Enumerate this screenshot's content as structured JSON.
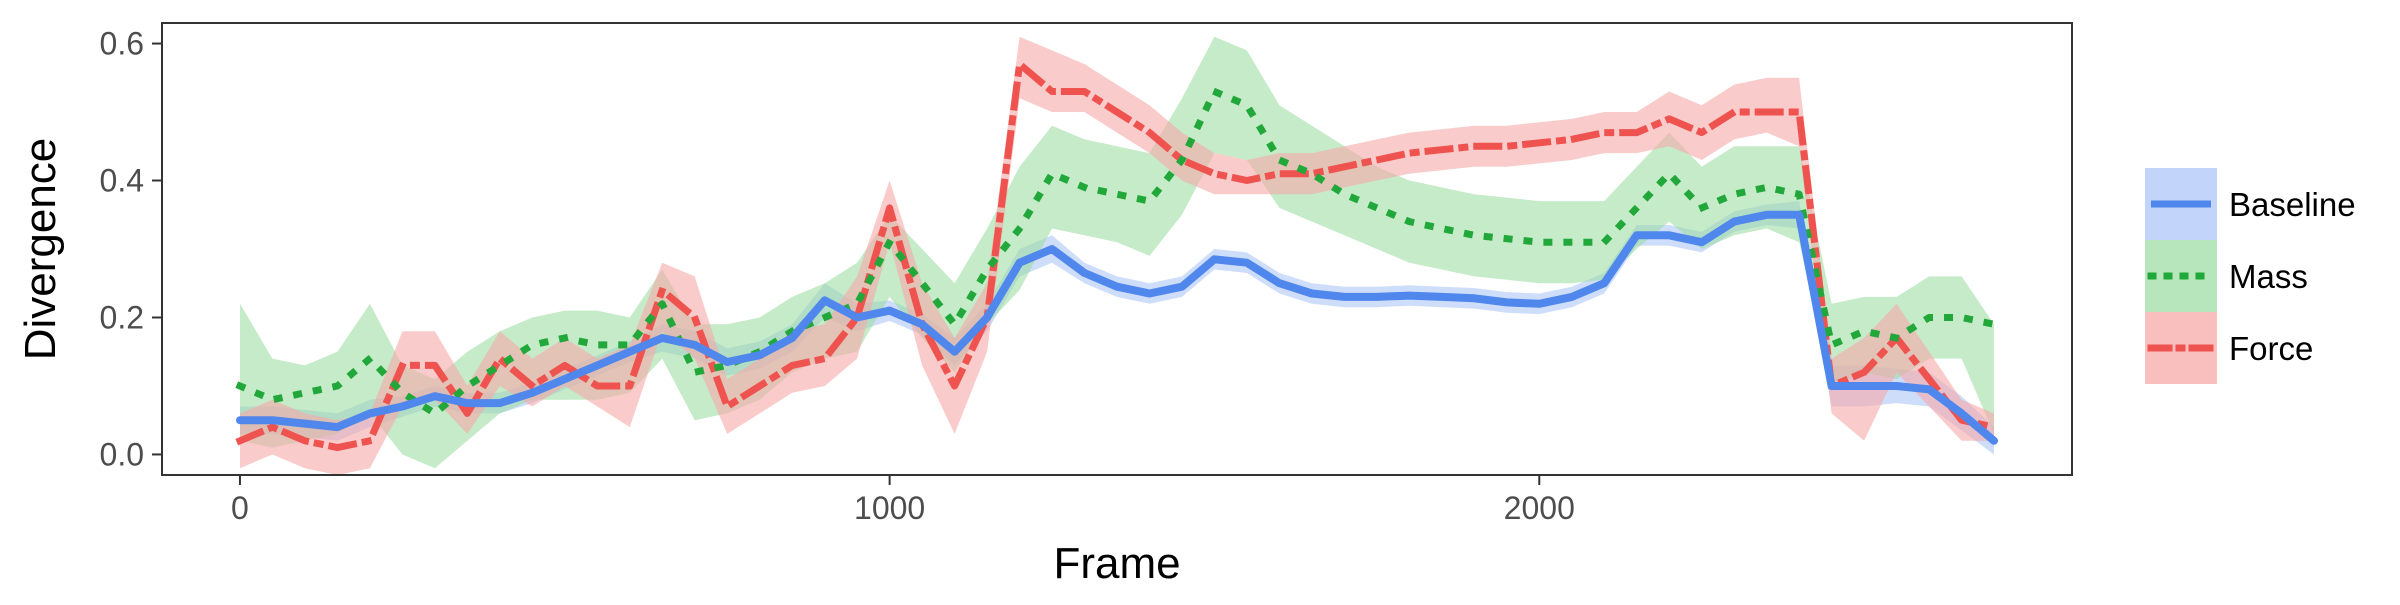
{
  "chart_data": {
    "type": "line",
    "xlabel": "Frame",
    "ylabel": "Divergence",
    "xlim": [
      -120,
      2820
    ],
    "ylim": [
      -0.03,
      0.63
    ],
    "x_ticks": [
      0,
      1000,
      2000
    ],
    "x_tick_labels": [
      "0",
      "1000",
      "2000"
    ],
    "y_ticks": [
      0.0,
      0.2,
      0.4,
      0.6
    ],
    "y_tick_labels": [
      "0.0",
      "0.2",
      "0.4",
      "0.6"
    ],
    "grid": false,
    "legend_position": "right",
    "x": [
      0,
      50,
      100,
      150,
      200,
      250,
      300,
      350,
      400,
      450,
      500,
      550,
      600,
      650,
      700,
      750,
      800,
      850,
      900,
      950,
      1000,
      1050,
      1100,
      1150,
      1200,
      1250,
      1300,
      1350,
      1400,
      1450,
      1500,
      1550,
      1600,
      1650,
      1700,
      1750,
      1800,
      1850,
      1900,
      1950,
      2000,
      2050,
      2100,
      2150,
      2200,
      2250,
      2300,
      2350,
      2400,
      2450,
      2500,
      2550,
      2600,
      2650,
      2700
    ],
    "series": [
      {
        "name": "Baseline",
        "color": "#4f87ec",
        "fill": "#aec6f7",
        "dash": "solid",
        "values": [
          0.05,
          0.05,
          0.045,
          0.04,
          0.06,
          0.07,
          0.085,
          0.075,
          0.075,
          0.09,
          0.11,
          0.13,
          0.15,
          0.17,
          0.16,
          0.135,
          0.145,
          0.17,
          0.225,
          0.2,
          0.21,
          0.19,
          0.15,
          0.2,
          0.28,
          0.3,
          0.265,
          0.245,
          0.235,
          0.245,
          0.285,
          0.28,
          0.25,
          0.235,
          0.23,
          0.23,
          0.232,
          0.23,
          0.228,
          0.222,
          0.22,
          0.23,
          0.25,
          0.32,
          0.32,
          0.31,
          0.34,
          0.35,
          0.35,
          0.1,
          0.1,
          0.1,
          0.095,
          0.06,
          0.02
        ],
        "lower": [
          0.03,
          0.03,
          0.025,
          0.02,
          0.04,
          0.055,
          0.07,
          0.06,
          0.06,
          0.075,
          0.095,
          0.115,
          0.135,
          0.15,
          0.14,
          0.115,
          0.125,
          0.15,
          0.2,
          0.18,
          0.195,
          0.175,
          0.13,
          0.18,
          0.26,
          0.28,
          0.25,
          0.23,
          0.22,
          0.23,
          0.27,
          0.265,
          0.235,
          0.22,
          0.215,
          0.215,
          0.217,
          0.215,
          0.213,
          0.207,
          0.205,
          0.215,
          0.235,
          0.305,
          0.305,
          0.295,
          0.325,
          0.335,
          0.33,
          0.07,
          0.07,
          0.075,
          0.07,
          0.035,
          0.0
        ],
        "upper": [
          0.07,
          0.07,
          0.065,
          0.06,
          0.08,
          0.085,
          0.1,
          0.09,
          0.09,
          0.105,
          0.125,
          0.145,
          0.165,
          0.19,
          0.18,
          0.155,
          0.165,
          0.19,
          0.25,
          0.22,
          0.225,
          0.205,
          0.17,
          0.22,
          0.3,
          0.32,
          0.28,
          0.26,
          0.25,
          0.26,
          0.3,
          0.295,
          0.265,
          0.25,
          0.245,
          0.245,
          0.247,
          0.245,
          0.243,
          0.237,
          0.235,
          0.245,
          0.265,
          0.335,
          0.335,
          0.325,
          0.355,
          0.365,
          0.37,
          0.13,
          0.13,
          0.125,
          0.12,
          0.085,
          0.04
        ]
      },
      {
        "name": "Mass",
        "color": "#22a83a",
        "fill": "#9fdea5",
        "dash": "dotted",
        "values": [
          0.1,
          0.08,
          0.09,
          0.1,
          0.14,
          0.09,
          0.06,
          0.1,
          0.13,
          0.16,
          0.17,
          0.16,
          0.16,
          0.22,
          0.12,
          0.13,
          0.15,
          0.18,
          0.2,
          0.22,
          0.31,
          0.25,
          0.19,
          0.27,
          0.33,
          0.41,
          0.39,
          0.38,
          0.37,
          0.43,
          0.53,
          0.51,
          0.43,
          0.41,
          0.38,
          0.36,
          0.34,
          0.33,
          0.32,
          0.315,
          0.31,
          0.31,
          0.31,
          0.36,
          0.41,
          0.36,
          0.38,
          0.39,
          0.38,
          0.16,
          0.18,
          0.17,
          0.2,
          0.2,
          0.19
        ],
        "lower": [
          0.02,
          0.01,
          0.02,
          0.03,
          0.06,
          0.0,
          -0.02,
          0.02,
          0.06,
          0.08,
          0.08,
          0.08,
          0.09,
          0.14,
          0.05,
          0.06,
          0.08,
          0.12,
          0.14,
          0.15,
          0.23,
          0.17,
          0.12,
          0.19,
          0.24,
          0.33,
          0.32,
          0.31,
          0.29,
          0.35,
          0.44,
          0.43,
          0.36,
          0.34,
          0.32,
          0.3,
          0.28,
          0.27,
          0.26,
          0.255,
          0.25,
          0.25,
          0.255,
          0.3,
          0.34,
          0.3,
          0.32,
          0.33,
          0.31,
          0.1,
          0.12,
          0.11,
          0.14,
          0.14,
          0.03
        ],
        "upper": [
          0.22,
          0.14,
          0.13,
          0.15,
          0.22,
          0.13,
          0.11,
          0.15,
          0.18,
          0.2,
          0.21,
          0.21,
          0.2,
          0.27,
          0.19,
          0.19,
          0.2,
          0.23,
          0.25,
          0.28,
          0.35,
          0.3,
          0.25,
          0.33,
          0.42,
          0.48,
          0.46,
          0.45,
          0.44,
          0.52,
          0.61,
          0.59,
          0.51,
          0.48,
          0.45,
          0.42,
          0.4,
          0.39,
          0.38,
          0.375,
          0.37,
          0.37,
          0.37,
          0.42,
          0.47,
          0.42,
          0.45,
          0.45,
          0.45,
          0.22,
          0.23,
          0.23,
          0.26,
          0.26,
          0.19
        ]
      },
      {
        "name": "Force",
        "color": "#ef5350",
        "fill": "#f7a8a8",
        "dash": "dashdot",
        "values": [
          0.02,
          0.04,
          0.02,
          0.01,
          0.02,
          0.13,
          0.13,
          0.06,
          0.14,
          0.1,
          0.13,
          0.1,
          0.1,
          0.24,
          0.2,
          0.07,
          0.1,
          0.13,
          0.14,
          0.2,
          0.36,
          0.19,
          0.1,
          0.2,
          0.57,
          0.53,
          0.53,
          0.5,
          0.47,
          0.43,
          0.41,
          0.4,
          0.41,
          0.41,
          0.42,
          0.43,
          0.44,
          0.445,
          0.45,
          0.45,
          0.455,
          0.46,
          0.47,
          0.47,
          0.49,
          0.47,
          0.5,
          0.5,
          0.5,
          0.1,
          0.12,
          0.17,
          0.11,
          0.05,
          0.04
        ],
        "lower": [
          -0.02,
          0.0,
          -0.02,
          -0.03,
          -0.02,
          0.07,
          0.08,
          0.03,
          0.1,
          0.07,
          0.1,
          0.07,
          0.04,
          0.18,
          0.14,
          0.03,
          0.06,
          0.09,
          0.1,
          0.14,
          0.31,
          0.13,
          0.03,
          0.15,
          0.52,
          0.5,
          0.5,
          0.47,
          0.44,
          0.4,
          0.38,
          0.38,
          0.38,
          0.38,
          0.39,
          0.4,
          0.41,
          0.415,
          0.42,
          0.42,
          0.425,
          0.43,
          0.44,
          0.44,
          0.45,
          0.43,
          0.46,
          0.47,
          0.45,
          0.06,
          0.02,
          0.12,
          0.07,
          0.02,
          0.02
        ],
        "upper": [
          0.06,
          0.08,
          0.06,
          0.05,
          0.06,
          0.18,
          0.18,
          0.1,
          0.18,
          0.14,
          0.17,
          0.14,
          0.16,
          0.28,
          0.26,
          0.11,
          0.14,
          0.18,
          0.19,
          0.26,
          0.4,
          0.25,
          0.17,
          0.25,
          0.61,
          0.59,
          0.57,
          0.54,
          0.51,
          0.47,
          0.44,
          0.43,
          0.44,
          0.44,
          0.45,
          0.46,
          0.47,
          0.475,
          0.48,
          0.48,
          0.485,
          0.49,
          0.5,
          0.5,
          0.53,
          0.51,
          0.54,
          0.55,
          0.55,
          0.14,
          0.17,
          0.22,
          0.15,
          0.08,
          0.06
        ]
      }
    ]
  }
}
